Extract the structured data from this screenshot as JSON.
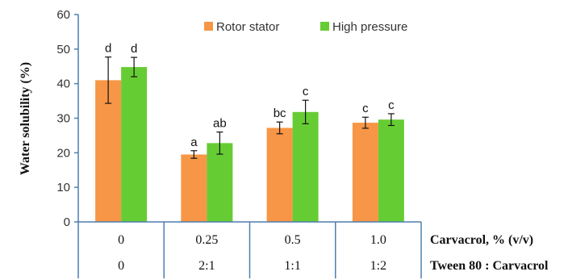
{
  "chart_data": {
    "type": "bar",
    "ylabel": "Water solubility (%)",
    "ylim": [
      0,
      60
    ],
    "yticks": [
      0,
      10,
      20,
      30,
      40,
      50,
      60
    ],
    "grid": false,
    "legend_position": "top-right",
    "categories": [
      "0",
      "0.25",
      "0.5",
      "1.0"
    ],
    "category_rows": [
      {
        "label": "Carvacrol, % (v/v)",
        "values": [
          "0",
          "0.25",
          "0.5",
          "1.0"
        ]
      },
      {
        "label": "Tween 80 : Carvacrol",
        "values": [
          "0",
          "2:1",
          "1:1",
          "1:2"
        ]
      }
    ],
    "series": [
      {
        "name": "Rotor stator",
        "color": "#f79646",
        "values": [
          41,
          19.5,
          27.2,
          28.7
        ],
        "errors": [
          6.7,
          1.1,
          1.7,
          1.6
        ],
        "labels": [
          "d",
          "a",
          "bc",
          "c"
        ]
      },
      {
        "name": "High pressure",
        "color": "#66cc33",
        "values": [
          44.8,
          22.8,
          31.8,
          29.6
        ],
        "errors": [
          2.8,
          3.2,
          3.4,
          1.7
        ],
        "labels": [
          "d",
          "ab",
          "c",
          "c"
        ]
      }
    ]
  }
}
